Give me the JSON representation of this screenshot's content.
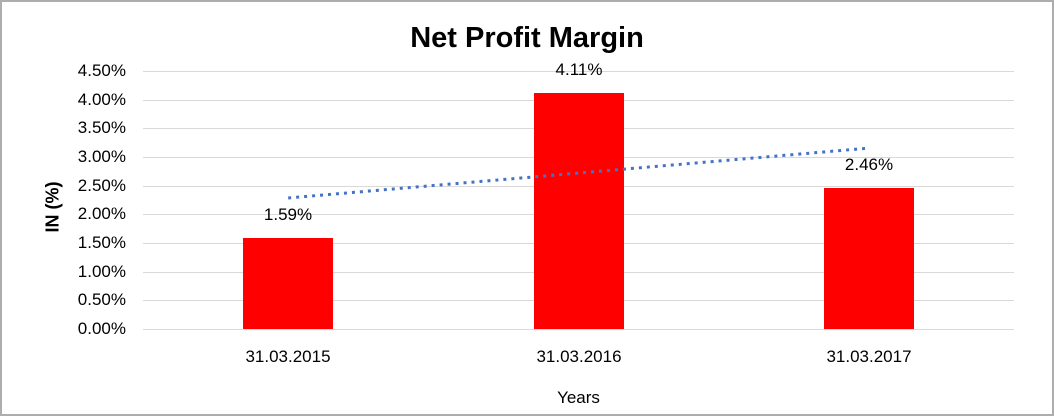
{
  "chart_data": {
    "type": "bar",
    "title": "Net Profit Margin",
    "categories": [
      "31.03.2015",
      "31.03.2016",
      "31.03.2017"
    ],
    "values": [
      1.59,
      4.11,
      2.46
    ],
    "data_labels": [
      "1.59%",
      "4.11%",
      "2.46%"
    ],
    "xlabel": "Years",
    "ylabel": "IN (%)",
    "ylim": [
      0,
      4.5
    ],
    "ytick_step": 0.5,
    "ytick_labels": [
      "0.00%",
      "0.50%",
      "1.00%",
      "1.50%",
      "2.00%",
      "2.50%",
      "3.00%",
      "3.50%",
      "4.00%",
      "4.50%"
    ],
    "grid": true,
    "legend": "none",
    "trendline": {
      "type": "linear",
      "style": "dotted",
      "color": "#4472c4"
    },
    "colors": {
      "bar": "#ff0000",
      "gridline": "#d9d9d9",
      "axis_line": "#d9d9d9",
      "text": "#000000",
      "border": "#adadad",
      "background": "#ffffff"
    }
  }
}
